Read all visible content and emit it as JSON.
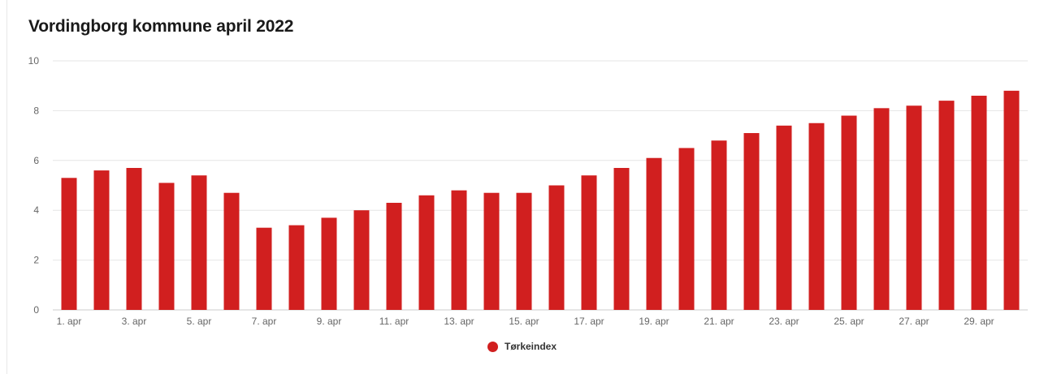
{
  "chart_data": {
    "type": "bar",
    "title": "Vordingborg kommune april 2022",
    "xlabel": "",
    "ylabel": "",
    "ylim": [
      0,
      10
    ],
    "yticks": [
      0,
      2,
      4,
      6,
      8,
      10
    ],
    "grid": true,
    "legend_position": "bottom-center",
    "categories": [
      "1. apr",
      "2. apr",
      "3. apr",
      "4. apr",
      "5. apr",
      "6. apr",
      "7. apr",
      "8. apr",
      "9. apr",
      "10. apr",
      "11. apr",
      "12. apr",
      "13. apr",
      "14. apr",
      "15. apr",
      "16. apr",
      "17. apr",
      "18. apr",
      "19. apr",
      "20. apr",
      "21. apr",
      "22. apr",
      "23. apr",
      "24. apr",
      "25. apr",
      "26. apr",
      "27. apr",
      "28. apr",
      "29. apr",
      "30. apr"
    ],
    "visible_tick_labels": [
      "1. apr",
      "3. apr",
      "5. apr",
      "7. apr",
      "9. apr",
      "11. apr",
      "13. apr",
      "15. apr",
      "17. apr",
      "19. apr",
      "21. apr",
      "23. apr",
      "25. apr",
      "27. apr",
      "29. apr"
    ],
    "series": [
      {
        "name": "Tørkeindex",
        "color": "#d11f1f",
        "values": [
          5.3,
          5.6,
          5.7,
          5.1,
          5.4,
          4.7,
          3.3,
          3.4,
          3.7,
          4.0,
          4.3,
          4.6,
          4.8,
          4.7,
          4.7,
          5.0,
          5.4,
          5.7,
          6.1,
          6.5,
          6.8,
          7.1,
          7.4,
          7.5,
          7.8,
          8.1,
          8.2,
          8.4,
          8.6,
          8.8
        ]
      }
    ]
  }
}
